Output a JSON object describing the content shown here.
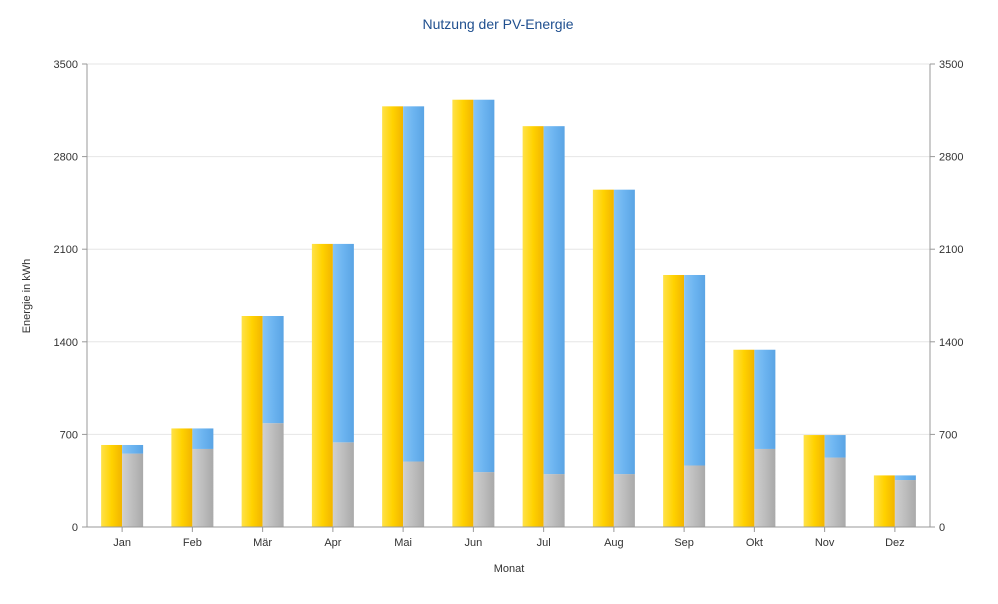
{
  "chart_data": {
    "type": "bar",
    "title": "Nutzung der PV-Energie",
    "xlabel": "Monat",
    "ylabel": "Energie in kWh",
    "ylim": [
      0,
      3500
    ],
    "yticks": [
      0,
      700,
      1400,
      2100,
      2800,
      3500
    ],
    "y2ticks": [
      0,
      700,
      1400,
      2100,
      2800,
      3500
    ],
    "grid": true,
    "categories": [
      "Jan",
      "Feb",
      "Mär",
      "Apr",
      "Mai",
      "Jun",
      "Jul",
      "Aug",
      "Sep",
      "Okt",
      "Nov",
      "Dez"
    ],
    "series": [
      {
        "color": "#ffd200",
        "values": [
          620,
          745,
          1595,
          2140,
          3180,
          3230,
          3030,
          2550,
          1905,
          1340,
          695,
          390
        ]
      },
      {
        "stack": "b",
        "color": "#b8b8b8",
        "values": [
          555,
          590,
          785,
          640,
          495,
          415,
          400,
          400,
          465,
          590,
          525,
          355
        ]
      },
      {
        "stack": "b",
        "color": "#6cb4f0",
        "values": [
          65,
          155,
          810,
          1500,
          2685,
          2815,
          2630,
          2150,
          1440,
          750,
          170,
          35
        ]
      }
    ]
  }
}
